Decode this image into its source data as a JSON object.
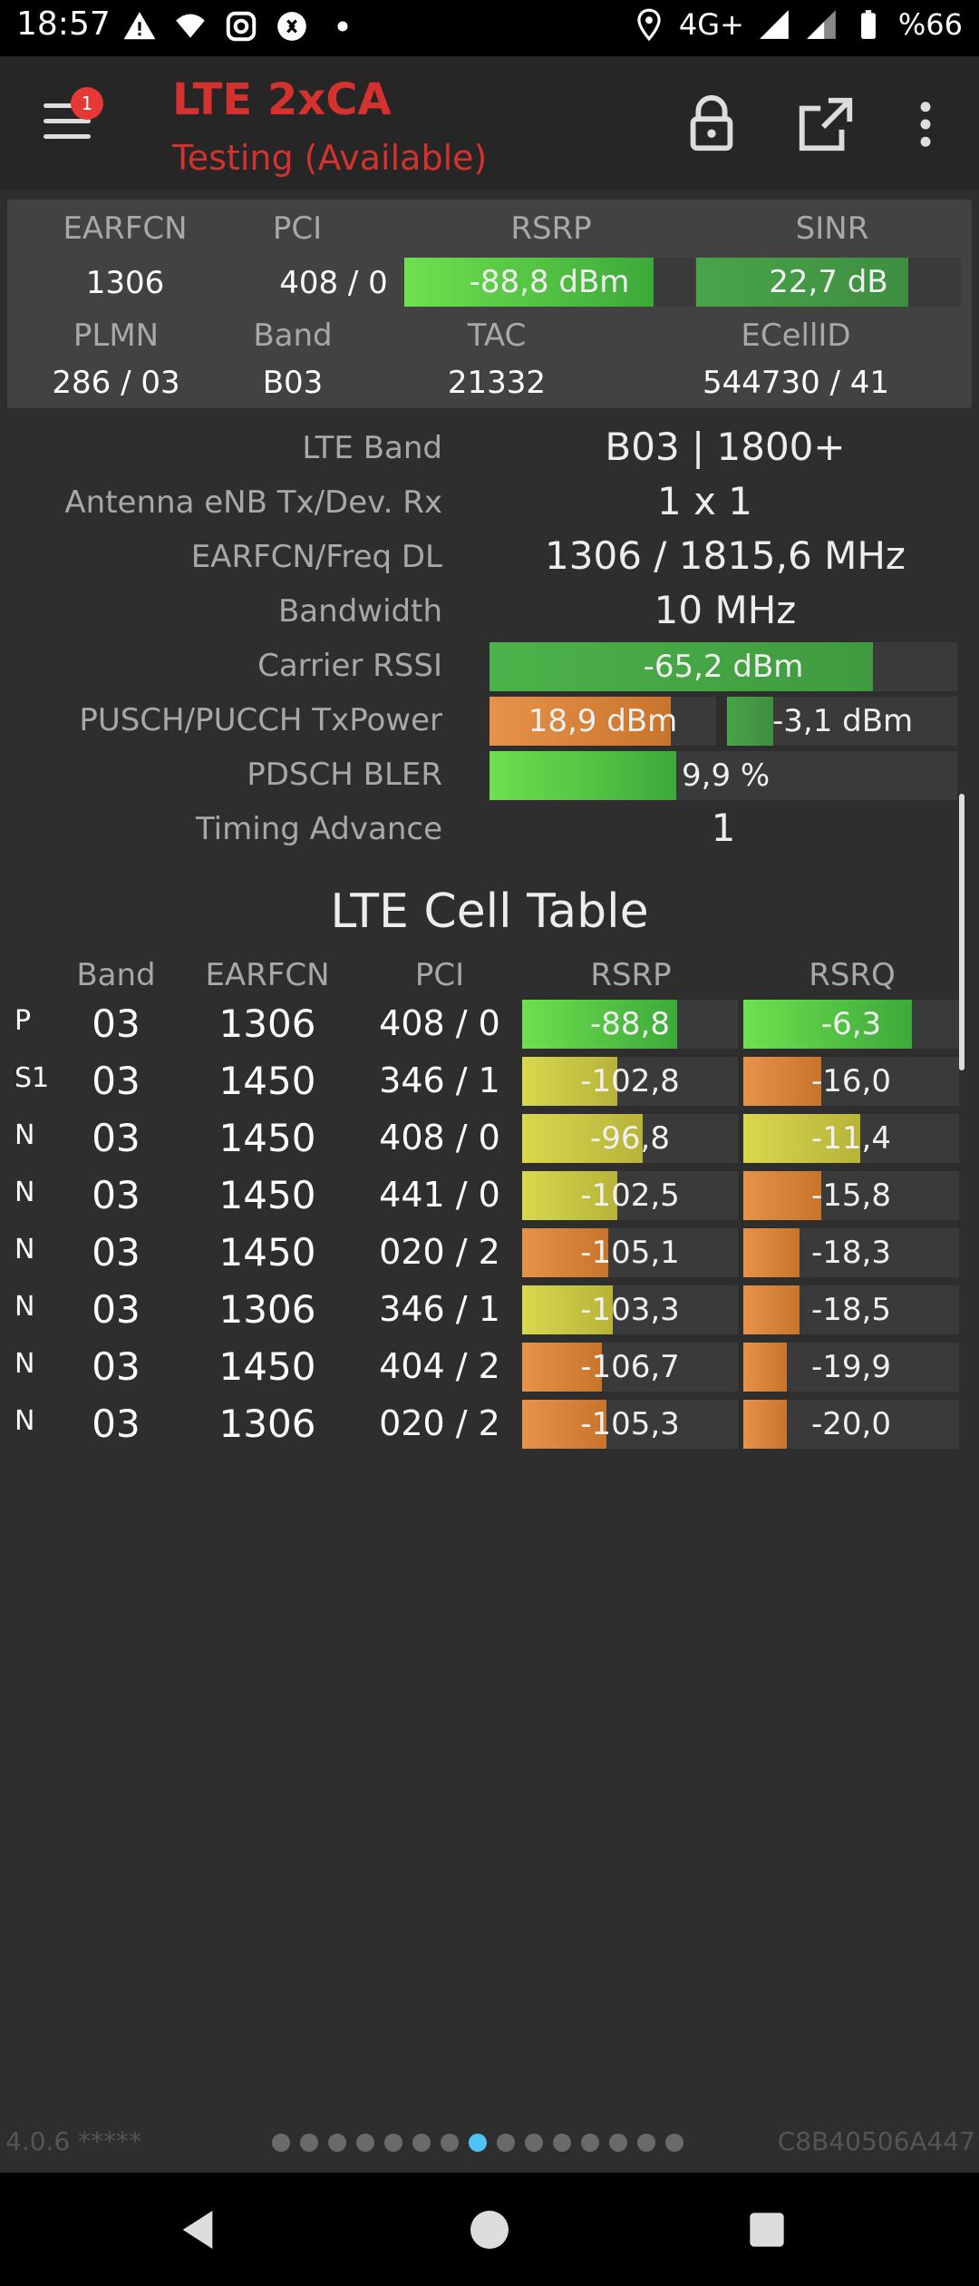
{
  "status": {
    "time": "18:57",
    "network": "4G+",
    "battery": "%66"
  },
  "app": {
    "title": "LTE 2xCA",
    "subtitle": "Testing (Available)",
    "menu_badge": "1"
  },
  "summary": {
    "labels": {
      "earfcn": "EARFCN",
      "pci": "PCI",
      "rsrp": "RSRP",
      "sinr": "SINR",
      "plmn": "PLMN",
      "band": "Band",
      "tac": "TAC",
      "ecellid": "ECellID"
    },
    "earfcn": "1306",
    "pci": "408 / 0",
    "rsrp": "-88,8 dBm",
    "sinr": "22,7 dB",
    "plmn": "286 / 03",
    "band": "B03",
    "tac": "21332",
    "ecellid": "544730 / 41"
  },
  "info": {
    "lte_band_label": "LTE Band",
    "lte_band": "B03 | 1800+",
    "antenna_label": "Antenna eNB Tx/Dev. Rx",
    "antenna": "1 x 1",
    "earfcn_freq_label": "EARFCN/Freq DL",
    "earfcn_freq": "1306 / 1815,6 MHz",
    "bandwidth_label": "Bandwidth",
    "bandwidth": "10 MHz",
    "carrier_rssi_label": "Carrier RSSI",
    "carrier_rssi": "-65,2 dBm",
    "txpower_label": "PUSCH/PUCCH TxPower",
    "pusch": "18,9 dBm",
    "pucch": "-3,1 dBm",
    "bler_label": "PDSCH BLER",
    "bler": "9,9 %",
    "timing_label": "Timing Advance",
    "timing": "1"
  },
  "cell_table": {
    "title": "LTE Cell Table",
    "headers": {
      "band": "Band",
      "earfcn": "EARFCN",
      "pci": "PCI",
      "rsrp": "RSRP",
      "rsrq": "RSRQ"
    },
    "rows": [
      {
        "type": "P",
        "band": "03",
        "earfcn": "1306",
        "pci": "408 / 0",
        "rsrp": "-88,8",
        "rsrq": "-6,3"
      },
      {
        "type": "S1",
        "band": "03",
        "earfcn": "1450",
        "pci": "346 / 1",
        "rsrp": "-102,8",
        "rsrq": "-16,0"
      },
      {
        "type": "N",
        "band": "03",
        "earfcn": "1450",
        "pci": "408 / 0",
        "rsrp": "-96,8",
        "rsrq": "-11,4"
      },
      {
        "type": "N",
        "band": "03",
        "earfcn": "1450",
        "pci": "441 / 0",
        "rsrp": "-102,5",
        "rsrq": "-15,8"
      },
      {
        "type": "N",
        "band": "03",
        "earfcn": "1450",
        "pci": "020 / 2",
        "rsrp": "-105,1",
        "rsrq": "-18,3"
      },
      {
        "type": "N",
        "band": "03",
        "earfcn": "1306",
        "pci": "346 / 1",
        "rsrp": "-103,3",
        "rsrq": "-18,5"
      },
      {
        "type": "N",
        "band": "03",
        "earfcn": "1450",
        "pci": "404 / 2",
        "rsrp": "-106,7",
        "rsrq": "-19,9"
      },
      {
        "type": "N",
        "band": "03",
        "earfcn": "1306",
        "pci": "020 / 2",
        "rsrp": "-105,3",
        "rsrq": "-20,0"
      }
    ]
  },
  "footer": {
    "version": "4.0.6 *****",
    "device_id": "C8B40506A447",
    "page_count": 15,
    "active_page": 7
  },
  "colors": {
    "accent_red": "#d3322e",
    "good_green": "#5fd445",
    "mid_yellow": "#cfd24a",
    "poor_orange": "#e08a3a",
    "active_dot": "#4fc3f7"
  }
}
